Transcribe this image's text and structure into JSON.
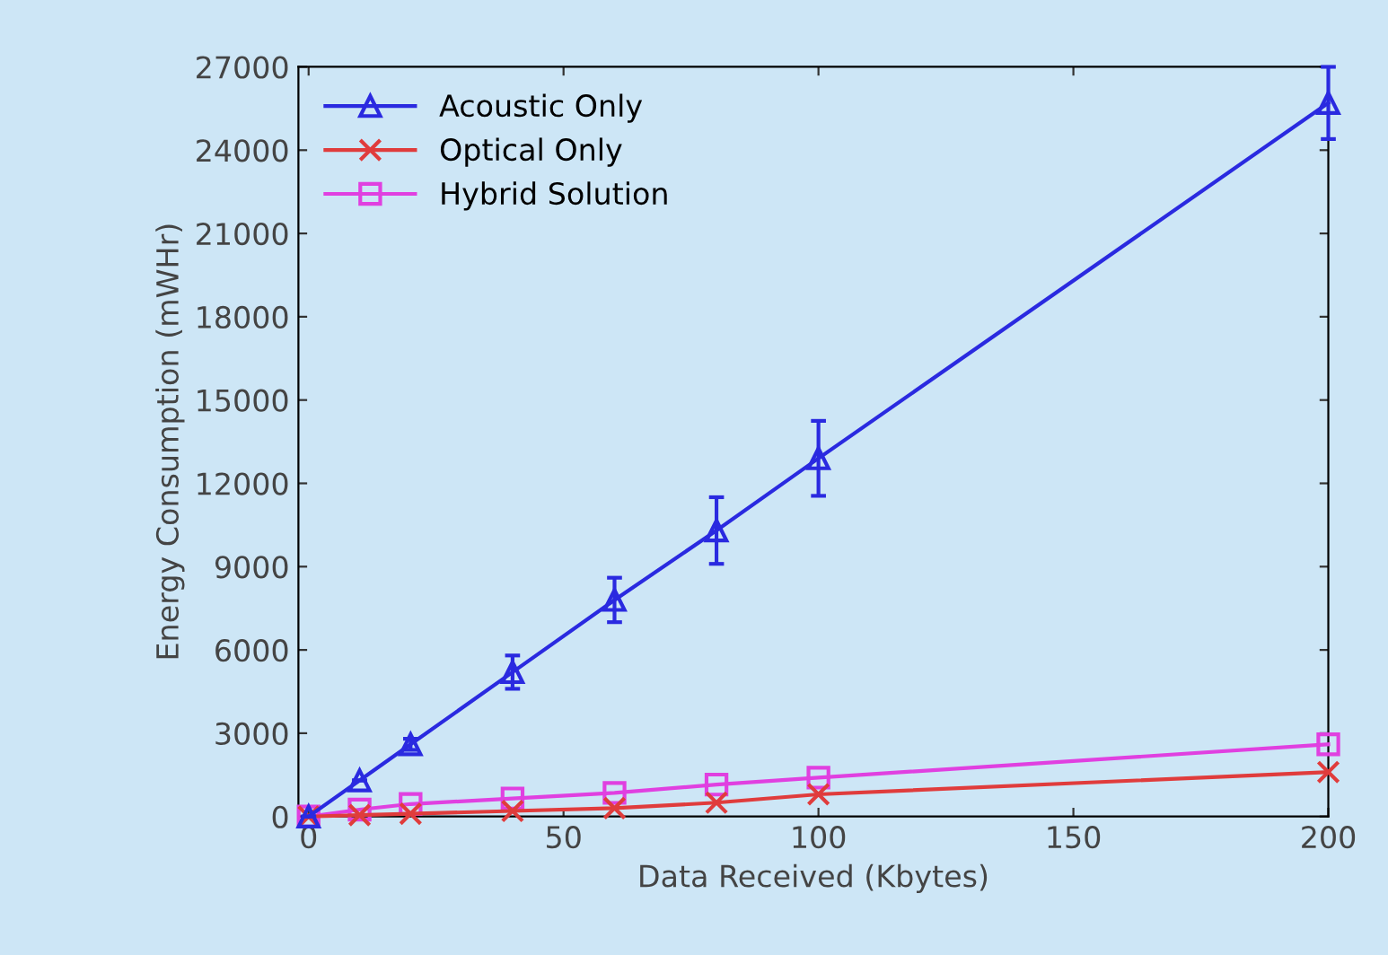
{
  "chart_data": {
    "type": "line",
    "xlabel": "Data Received (Kbytes)",
    "ylabel": "Energy Consumption (mWHr)",
    "x": [
      0,
      10,
      20,
      40,
      60,
      80,
      100,
      200
    ],
    "series": [
      {
        "name": "Acoustic Only",
        "color": "#2a2ae0",
        "marker": "triangle",
        "values": [
          0,
          1300,
          2600,
          5200,
          7800,
          10300,
          12900,
          25700
        ],
        "errors": [
          null,
          null,
          200,
          600,
          800,
          1200,
          1350,
          1300
        ]
      },
      {
        "name": "Optical Only",
        "color": "#e03c3c",
        "marker": "cross",
        "values": [
          0,
          50,
          100,
          200,
          300,
          500,
          800,
          1600
        ]
      },
      {
        "name": "Hybrid Solution",
        "color": "#e040e0",
        "marker": "square",
        "values": [
          0,
          250,
          450,
          650,
          850,
          1150,
          1400,
          2600
        ]
      }
    ],
    "xlim": [
      -2,
      200
    ],
    "xticks": [
      0,
      50,
      100,
      150,
      200
    ],
    "ylim": [
      0,
      27000
    ],
    "yticks": [
      0,
      3000,
      6000,
      9000,
      12000,
      15000,
      18000,
      21000,
      24000,
      27000
    ],
    "grid": false,
    "legend": "top left"
  }
}
